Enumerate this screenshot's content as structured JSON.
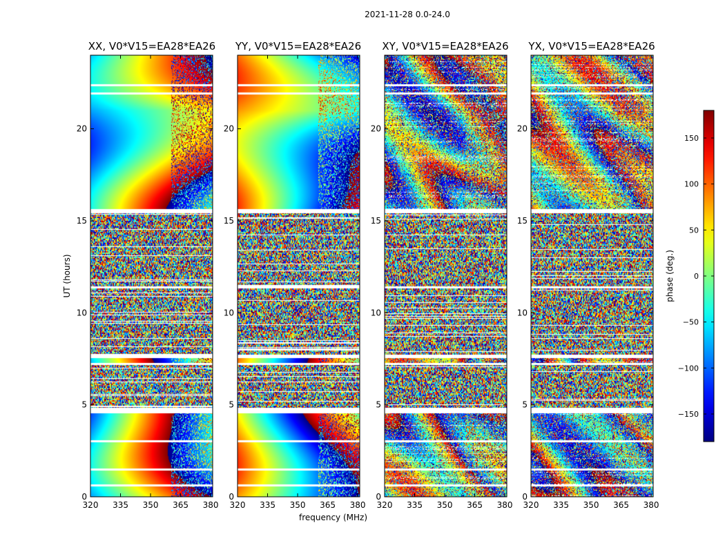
{
  "figure": {
    "suptitle": "2021-11-28 0.0-24.0",
    "xlabel": "frequency (MHz)",
    "ylabel": "UT (hours)",
    "colorbar_label": "phase (deg.)"
  },
  "chart_data": {
    "type": "heatmap",
    "title": "2021-11-28 0.0-24.0",
    "xlabel": "frequency (MHz)",
    "ylabel": "UT (hours)",
    "xlim": [
      320,
      381
    ],
    "ylim": [
      0,
      24
    ],
    "xticks": [
      320,
      335,
      350,
      365,
      380
    ],
    "yticks": [
      0,
      5,
      10,
      15,
      20
    ],
    "colormap": "jet",
    "colorbar": {
      "label": "phase (deg.)",
      "range": [
        -180,
        180
      ],
      "ticks": [
        -150,
        -100,
        -50,
        0,
        50,
        100,
        150
      ]
    },
    "panels": [
      {
        "title": "XX, V0*V15=EA28*EA26",
        "pattern": "parallel-hand",
        "slope_sign": 1
      },
      {
        "title": "YY, V0*V15=EA28*EA26",
        "pattern": "parallel-hand",
        "slope_sign": -1
      },
      {
        "title": "XY, V0*V15=EA28*EA26",
        "pattern": "cross-hand",
        "slope_sign": 1
      },
      {
        "title": "YX, V0*V15=EA28*EA26",
        "pattern": "cross-hand",
        "slope_sign": -1
      }
    ],
    "flagged_bands_hours": [
      [
        0.6,
        0.7
      ],
      [
        1.45,
        1.55
      ],
      [
        3.0,
        3.1
      ],
      [
        4.55,
        4.85
      ],
      [
        7.2,
        7.3
      ],
      [
        7.55,
        7.75
      ],
      [
        11.35,
        11.45
      ],
      [
        15.45,
        15.65
      ],
      [
        21.9,
        22.0
      ],
      [
        22.35,
        22.45
      ]
    ],
    "noise_segments_hours": [
      [
        4.85,
        7.2
      ],
      [
        7.75,
        15.45
      ]
    ]
  }
}
